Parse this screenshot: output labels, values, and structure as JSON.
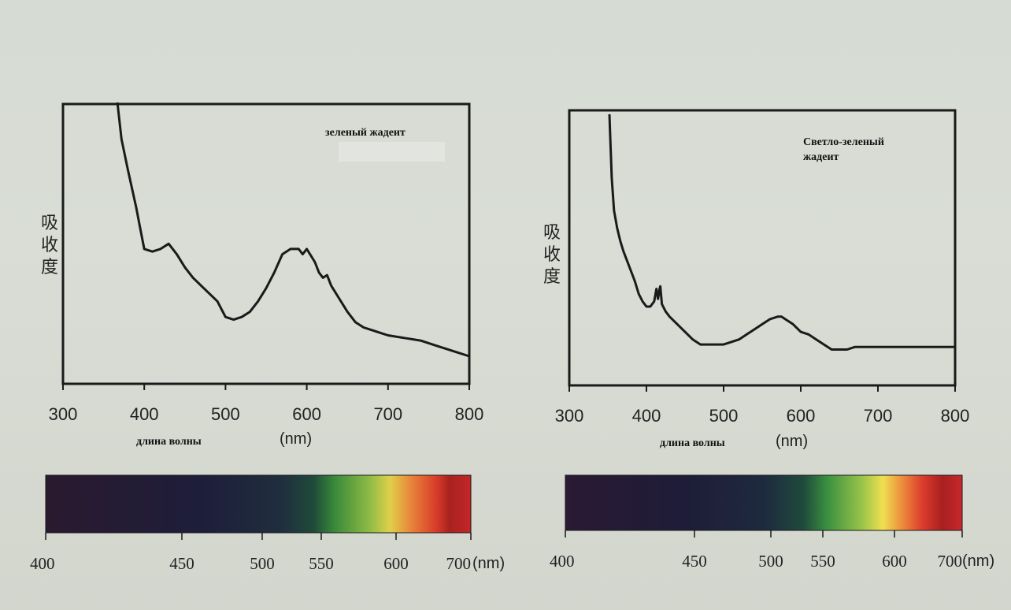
{
  "chart_data": [
    {
      "type": "line",
      "title": "зеленый жадеит",
      "xlabel": "длина волны",
      "xunit": "(nm)",
      "ylabel": "吸收度",
      "xlim": [
        300,
        800
      ],
      "xticks": [
        "300",
        "400",
        "500",
        "600",
        "700",
        "800"
      ],
      "y_unit": "relative absorbance (0-1, unlabeled axis)",
      "x": [
        367,
        372,
        380,
        390,
        395,
        400,
        410,
        420,
        430,
        440,
        450,
        460,
        470,
        480,
        490,
        500,
        510,
        520,
        530,
        540,
        550,
        560,
        570,
        580,
        590,
        595,
        600,
        610,
        615,
        620,
        625,
        630,
        640,
        650,
        660,
        670,
        680,
        690,
        700,
        720,
        740,
        760,
        780,
        800
      ],
      "y": [
        1.0,
        0.86,
        0.74,
        0.6,
        0.52,
        0.44,
        0.43,
        0.44,
        0.46,
        0.42,
        0.37,
        0.33,
        0.3,
        0.27,
        0.24,
        0.18,
        0.17,
        0.18,
        0.2,
        0.24,
        0.29,
        0.35,
        0.42,
        0.44,
        0.44,
        0.42,
        0.44,
        0.39,
        0.35,
        0.33,
        0.34,
        0.3,
        0.25,
        0.2,
        0.16,
        0.14,
        0.13,
        0.12,
        0.11,
        0.1,
        0.09,
        0.07,
        0.05,
        0.03
      ],
      "spectrum_bar": {
        "ticks": [
          "400",
          "450",
          "500",
          "550",
          "600",
          "700"
        ],
        "unit": "(nm)"
      }
    },
    {
      "type": "line",
      "title": "Светло-зеленый жадеит",
      "title_lines": [
        "Светло-зеленый",
        "жадеит"
      ],
      "xlabel": "длина волны",
      "xunit": "(nm)",
      "ylabel": "吸收度",
      "xlim": [
        300,
        800
      ],
      "xticks": [
        "300",
        "400",
        "500",
        "600",
        "700",
        "800"
      ],
      "y_unit": "relative absorbance (0-1, unlabeled axis)",
      "x": [
        352,
        353,
        355,
        358,
        362,
        366,
        370,
        375,
        380,
        385,
        390,
        395,
        400,
        405,
        410,
        413,
        415,
        417,
        418,
        420,
        425,
        430,
        440,
        450,
        460,
        470,
        480,
        490,
        500,
        510,
        520,
        530,
        540,
        550,
        560,
        570,
        575,
        580,
        590,
        600,
        610,
        615,
        620,
        630,
        640,
        650,
        660,
        670,
        680,
        700,
        720,
        740,
        760,
        780,
        800
      ],
      "y": [
        1.0,
        0.92,
        0.75,
        0.62,
        0.55,
        0.5,
        0.46,
        0.42,
        0.38,
        0.34,
        0.29,
        0.26,
        0.24,
        0.24,
        0.26,
        0.31,
        0.27,
        0.31,
        0.32,
        0.25,
        0.22,
        0.2,
        0.17,
        0.14,
        0.11,
        0.09,
        0.09,
        0.09,
        0.09,
        0.1,
        0.11,
        0.13,
        0.15,
        0.17,
        0.19,
        0.2,
        0.2,
        0.19,
        0.17,
        0.14,
        0.13,
        0.12,
        0.11,
        0.09,
        0.07,
        0.07,
        0.07,
        0.08,
        0.08,
        0.08,
        0.08,
        0.08,
        0.08,
        0.08,
        0.08
      ],
      "spectrum_bar": {
        "ticks": [
          "400",
          "450",
          "500",
          "550",
          "600",
          "700"
        ],
        "unit": "(nm)"
      }
    }
  ]
}
